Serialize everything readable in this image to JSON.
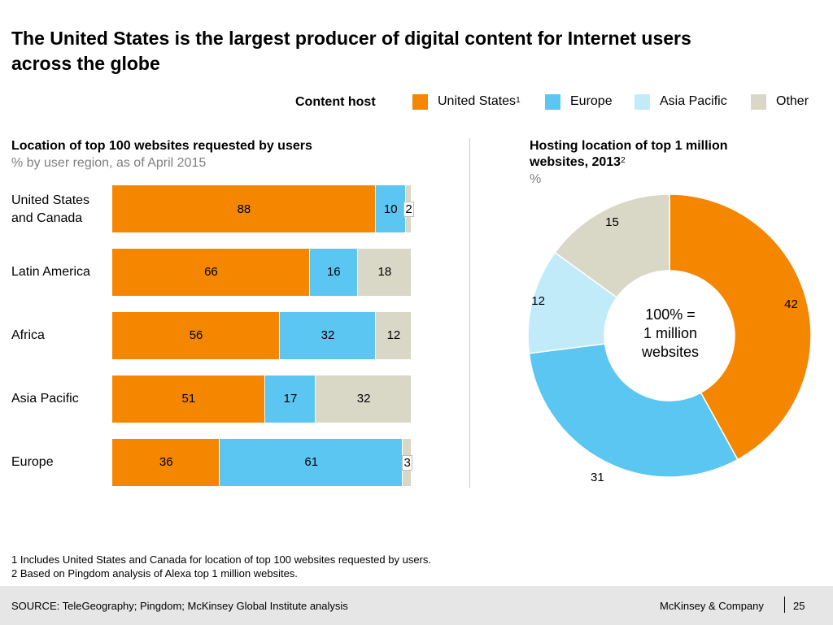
{
  "title": "The United States is the largest producer of digital content for Internet users across the globe",
  "legend": {
    "title": "Content host",
    "items": [
      {
        "label": "United States",
        "sup": "1",
        "color": "#f58600"
      },
      {
        "label": "Europe",
        "sup": "",
        "color": "#5bc6f1"
      },
      {
        "label": "Asia Pacific",
        "sup": "",
        "color": "#c2ebfa"
      },
      {
        "label": "Other",
        "sup": "",
        "color": "#d9d8c6"
      }
    ]
  },
  "left_panel": {
    "title": "Location of top 100 websites requested by users",
    "subtitle": "% by user region, as of April 2015"
  },
  "right_panel": {
    "title_line1": "Hosting location of top 1 million",
    "title_line2": "websites, 2013",
    "title_sup": "2",
    "subtitle": "%",
    "center_line1": "100% =",
    "center_line2": "1 million",
    "center_line3": "websites"
  },
  "chart_data": [
    {
      "type": "bar",
      "orientation": "horizontal",
      "stacked": true,
      "title": "Location of top 100 websites requested by users",
      "subtitle": "% by user region, as of April 2015",
      "categories": [
        "United States and Canada",
        "Latin America",
        "Africa",
        "Asia Pacific",
        "Europe"
      ],
      "series": [
        {
          "name": "United States",
          "color": "#f58600",
          "values": [
            88,
            66,
            56,
            51,
            36
          ]
        },
        {
          "name": "Europe",
          "color": "#5bc6f1",
          "values": [
            10,
            16,
            32,
            17,
            61
          ]
        },
        {
          "name": "Asia Pacific",
          "color": "#c2ebfa",
          "values": [
            0,
            0,
            0,
            0,
            0
          ]
        },
        {
          "name": "Other",
          "color": "#d9d8c6",
          "values": [
            2,
            18,
            12,
            32,
            3
          ]
        }
      ],
      "xlim": [
        0,
        100
      ]
    },
    {
      "type": "pie",
      "donut": true,
      "title": "Hosting location of top 1 million websites, 2013",
      "subtitle": "%",
      "slices": [
        {
          "name": "United States",
          "value": 42,
          "color": "#f58600"
        },
        {
          "name": "Europe",
          "value": 31,
          "color": "#5bc6f1"
        },
        {
          "name": "Asia Pacific",
          "value": 12,
          "color": "#c2ebfa"
        },
        {
          "name": "Other",
          "value": 15,
          "color": "#d9d8c6"
        }
      ]
    }
  ],
  "footnotes": [
    "1 Includes United States and Canada for location of top 100 websites requested by users.",
    "2 Based on Pingdom analysis of Alexa top 1 million websites."
  ],
  "footer": {
    "source": "SOURCE: TeleGeography; Pingdom; McKinsey Global Institute analysis",
    "company": "McKinsey & Company",
    "page": "25"
  }
}
